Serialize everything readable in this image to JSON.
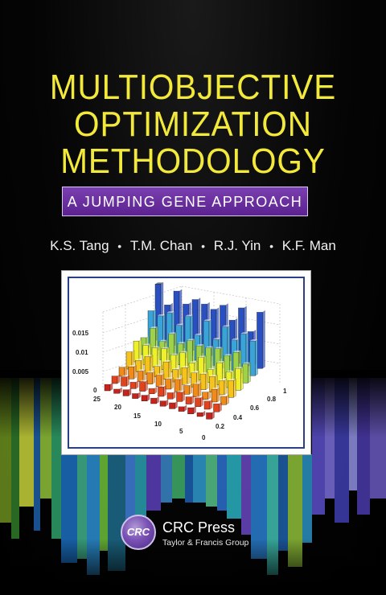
{
  "book": {
    "title_lines": [
      "MULTIOBJECTIVE",
      "OPTIMIZATION",
      "METHODOLOGY"
    ],
    "subtitle": "A JUMPING GENE APPROACH",
    "authors": [
      "K.S. Tang",
      "T.M. Chan",
      "R.J. Yin",
      "K.F. Man"
    ],
    "author_separator": "•"
  },
  "figure": {
    "z_ticks": [
      "0.015",
      "0.01",
      "0.005",
      "0"
    ],
    "left_axis_ticks": [
      "25",
      "20",
      "15",
      "10",
      "5"
    ],
    "right_axis_ticks": [
      "0",
      "0.2",
      "0.4",
      "0.6",
      "0.8",
      "1"
    ]
  },
  "publisher": {
    "logo_text": "CRC",
    "name": "CRC Press",
    "group": "Taylor & Francis Group"
  },
  "colors": {
    "title": "#f3e93a",
    "subtitle_bg": "#6a2ea0",
    "figure_frame": "#2b3f86"
  }
}
